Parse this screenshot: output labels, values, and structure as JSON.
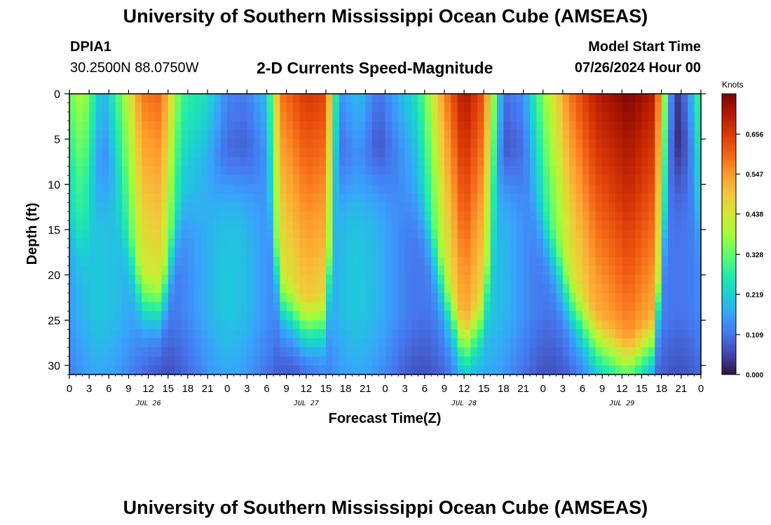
{
  "header": {
    "title": "University of Southern Mississippi Ocean Cube (AMSEAS)",
    "station": "DPIA1",
    "coords": "30.2500N  88.0750W",
    "subtitle": "2-D Currents Speed-Magnitude",
    "model_start_label": "Model Start Time",
    "model_start_value": "07/26/2024 Hour 00"
  },
  "footer": {
    "title": "University of Southern Mississippi Ocean Cube (AMSEAS)"
  },
  "chart_data": {
    "type": "heatmap",
    "title": "2-D Currents Speed-Magnitude",
    "xlabel": "Forecast Time(Z)",
    "ylabel": "Depth (ft)",
    "x_range_hours": [
      0,
      96
    ],
    "y_range_ft": [
      0,
      31
    ],
    "y_inverted": true,
    "x_tick_labels": [
      "0",
      "3",
      "6",
      "9",
      "12",
      "15",
      "18",
      "21",
      "0",
      "3",
      "6",
      "9",
      "12",
      "15",
      "18",
      "21",
      "0",
      "3",
      "6",
      "9",
      "12",
      "15",
      "18",
      "21",
      "0",
      "3",
      "6",
      "9",
      "12",
      "15",
      "18",
      "21",
      "0"
    ],
    "day_labels": [
      {
        "label": "JUL 26",
        "hour": 12
      },
      {
        "label": "JUL 27",
        "hour": 36
      },
      {
        "label": "JUL 28",
        "hour": 60
      },
      {
        "label": "JUL 29",
        "hour": 84
      }
    ],
    "y_ticks": [
      0,
      5,
      10,
      15,
      20,
      25,
      30
    ],
    "colorbar": {
      "unit": "Knots",
      "min": 0.0,
      "max": 0.766,
      "tick_values": [
        0.0,
        0.109,
        0.219,
        0.328,
        0.438,
        0.547,
        0.656
      ],
      "tick_labels": [
        "0.000",
        "0.109",
        "0.219",
        "0.328",
        "0.438",
        "0.547",
        "0.656"
      ],
      "colormap": [
        "#30123b",
        "#4145ab",
        "#4675ed",
        "#39a2fc",
        "#1bcfd4",
        "#24eca6",
        "#61fc6c",
        "#a4fc3b",
        "#d1e834",
        "#f3c63a",
        "#fe9b2d",
        "#f36315",
        "#d93806",
        "#b11901",
        "#7a0402"
      ]
    },
    "max_speed_knots": 0.766,
    "surface_speed_knots_by_hour": [
      {
        "hour": 0,
        "speed": 0.33
      },
      {
        "hour": 2,
        "speed": 0.4
      },
      {
        "hour": 5,
        "speed": 0.18
      },
      {
        "hour": 6,
        "speed": 0.22
      },
      {
        "hour": 8,
        "speed": 0.35
      },
      {
        "hour": 11,
        "speed": 0.58
      },
      {
        "hour": 14,
        "speed": 0.6
      },
      {
        "hour": 17,
        "speed": 0.3
      },
      {
        "hour": 21,
        "speed": 0.24
      },
      {
        "hour": 24,
        "speed": 0.13
      },
      {
        "hour": 27,
        "speed": 0.12
      },
      {
        "hour": 30,
        "speed": 0.2
      },
      {
        "hour": 32,
        "speed": 0.58
      },
      {
        "hour": 36,
        "speed": 0.66
      },
      {
        "hour": 39,
        "speed": 0.64
      },
      {
        "hour": 41,
        "speed": 0.14
      },
      {
        "hour": 44,
        "speed": 0.2
      },
      {
        "hour": 47,
        "speed": 0.1
      },
      {
        "hour": 50,
        "speed": 0.18
      },
      {
        "hour": 53,
        "speed": 0.26
      },
      {
        "hour": 57,
        "speed": 0.56
      },
      {
        "hour": 60,
        "speed": 0.72
      },
      {
        "hour": 63,
        "speed": 0.62
      },
      {
        "hour": 66,
        "speed": 0.1
      },
      {
        "hour": 69,
        "speed": 0.14
      },
      {
        "hour": 72,
        "speed": 0.36
      },
      {
        "hour": 76,
        "speed": 0.58
      },
      {
        "hour": 80,
        "speed": 0.7
      },
      {
        "hour": 85,
        "speed": 0.76
      },
      {
        "hour": 89,
        "speed": 0.7
      },
      {
        "hour": 92,
        "speed": 0.02
      },
      {
        "hour": 94,
        "speed": 0.12
      },
      {
        "hour": 96,
        "speed": 0.34
      }
    ]
  }
}
